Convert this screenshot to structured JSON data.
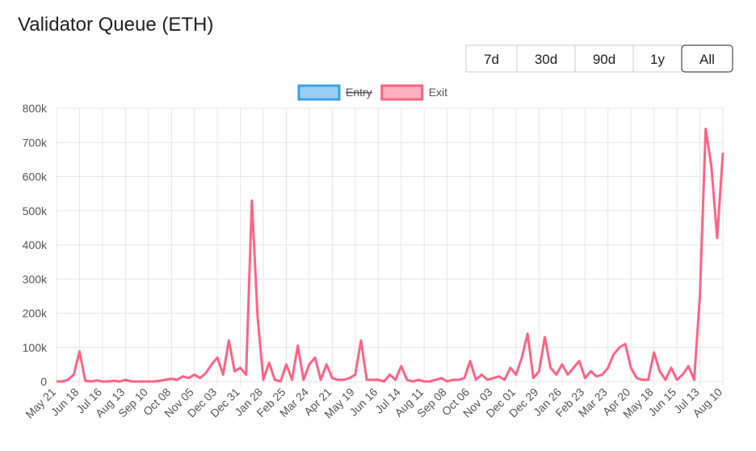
{
  "controls": {
    "ranges": [
      "7d",
      "30d",
      "90d",
      "1y",
      "All"
    ],
    "selected": 4
  },
  "chart_data": {
    "type": "line",
    "title": "Validator Queue (ETH)",
    "categories": [
      "May 21",
      null,
      null,
      null,
      "Jun 18",
      null,
      null,
      null,
      "Jul 16",
      null,
      null,
      null,
      "Aug 13",
      null,
      null,
      null,
      "Sep 10",
      null,
      null,
      null,
      "Oct 08",
      null,
      null,
      null,
      "Nov 05",
      null,
      null,
      null,
      "Dec 03",
      null,
      null,
      null,
      "Dec 31",
      null,
      null,
      null,
      "Jan 28",
      null,
      null,
      null,
      "Feb 25",
      null,
      null,
      null,
      "Mar 24",
      null,
      null,
      null,
      "Apr 21",
      null,
      null,
      null,
      "May 19",
      null,
      null,
      null,
      "Jun 16",
      null,
      null,
      null,
      "Jul 14",
      null,
      null,
      null,
      "Aug 11",
      null,
      null,
      null,
      "Sep 08",
      null,
      null,
      null,
      "Oct 06",
      null,
      null,
      null,
      "Nov 03",
      null,
      null,
      null,
      "Dec 01",
      null,
      null,
      null,
      "Dec 29",
      null,
      null,
      null,
      "Jan 26",
      null,
      null,
      null,
      "Feb 23",
      null,
      null,
      null,
      "Mar 23",
      null,
      null,
      null,
      "Apr 20",
      null,
      null,
      null,
      "May 18",
      null,
      null,
      null,
      "Jun 15",
      null,
      null,
      null,
      "Jul 13",
      null,
      null,
      null,
      "Aug 10"
    ],
    "series": [
      {
        "name": "Exit",
        "color": "#ff6384",
        "values": [
          0,
          0,
          5000,
          20000,
          88000,
          2000,
          0,
          3000,
          0,
          0,
          2000,
          0,
          5000,
          0,
          0,
          0,
          0,
          0,
          2000,
          5000,
          8000,
          5000,
          15000,
          10000,
          20000,
          10000,
          25000,
          50000,
          70000,
          20000,
          120000,
          30000,
          40000,
          20000,
          530000,
          190000,
          5000,
          55000,
          5000,
          0,
          50000,
          5000,
          105000,
          5000,
          50000,
          70000,
          5000,
          50000,
          10000,
          5000,
          5000,
          10000,
          20000,
          120000,
          5000,
          5000,
          5000,
          0,
          20000,
          5000,
          45000,
          5000,
          0,
          5000,
          0,
          0,
          5000,
          10000,
          0,
          5000,
          5000,
          10000,
          60000,
          5000,
          20000,
          5000,
          10000,
          15000,
          5000,
          40000,
          20000,
          70000,
          140000,
          10000,
          30000,
          130000,
          40000,
          20000,
          50000,
          20000,
          40000,
          60000,
          10000,
          30000,
          15000,
          20000,
          40000,
          80000,
          100000,
          110000,
          40000,
          10000,
          5000,
          5000,
          85000,
          30000,
          5000,
          40000,
          5000,
          20000,
          45000,
          5000,
          250000,
          740000,
          630000,
          420000,
          670000
        ]
      }
    ],
    "hidden_series": [
      {
        "name": "Entry",
        "color": "#36a2eb"
      }
    ],
    "ylim": [
      0,
      800000
    ],
    "yticks": [
      0,
      {
        "value": 100000,
        "label": "100k"
      },
      {
        "value": 200000,
        "label": "200k"
      },
      {
        "value": 300000,
        "label": "300k"
      },
      {
        "value": 400000,
        "label": "400k"
      },
      {
        "value": 500000,
        "label": "500k"
      },
      {
        "value": 600000,
        "label": "600k"
      },
      {
        "value": 700000,
        "label": "700k"
      },
      {
        "value": 800000,
        "label": "800k"
      }
    ],
    "grid": true
  }
}
